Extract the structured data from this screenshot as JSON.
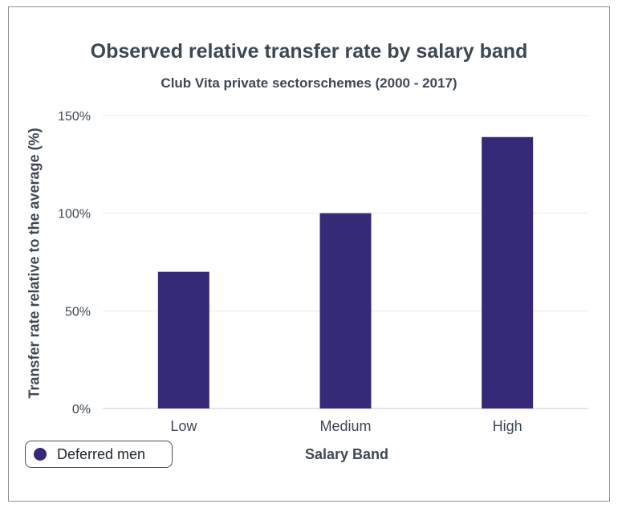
{
  "chart_data": {
    "type": "bar",
    "title": "Observed relative transfer rate by salary band",
    "subtitle": "Club Vita private sectorschemes (2000 - 2017)",
    "xlabel": "Salary Band",
    "ylabel": "Transfer rate relative to the average (%)",
    "categories": [
      "Low",
      "Medium",
      "High"
    ],
    "series": [
      {
        "name": "Deferred men",
        "values": [
          70,
          100,
          139
        ]
      }
    ],
    "ylim": [
      0,
      150
    ],
    "yticks": [
      0,
      50,
      100,
      150
    ],
    "ytick_labels": [
      "0%",
      "50%",
      "100%",
      "150%"
    ],
    "grid": true,
    "legend_position": "bottom-left",
    "bar_color": "#342a78"
  }
}
